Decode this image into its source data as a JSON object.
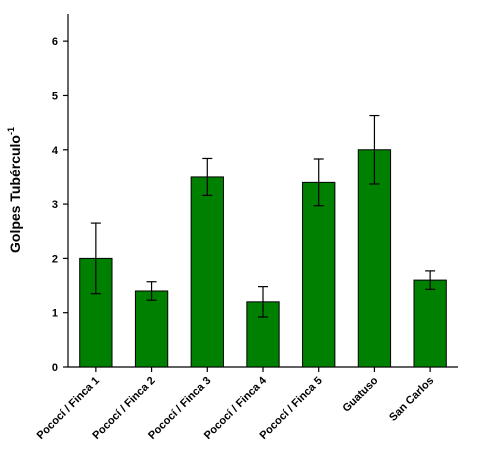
{
  "chart_data": {
    "type": "bar",
    "categories": [
      "Pococí / Finca 1",
      "Pococí / Finca 2",
      "Pococí / Finca 3",
      "Pococí / Finca 4",
      "Pococí / Finca 5",
      "Guatuso",
      "San Carlos"
    ],
    "values": [
      2.0,
      1.4,
      3.5,
      1.2,
      3.4,
      4.0,
      1.6
    ],
    "errors": [
      0.65,
      0.17,
      0.34,
      0.28,
      0.43,
      0.63,
      0.17
    ],
    "ylabel": "Golpes Tubérculo",
    "ylabel_exponent": "-1",
    "ylim": [
      0,
      6.5
    ],
    "yticks": [
      "0",
      "1",
      "2",
      "3",
      "4",
      "5",
      "6"
    ],
    "bar_color": "#008000",
    "bar_edge_color": "#000000",
    "grid": false,
    "legend": "none"
  }
}
